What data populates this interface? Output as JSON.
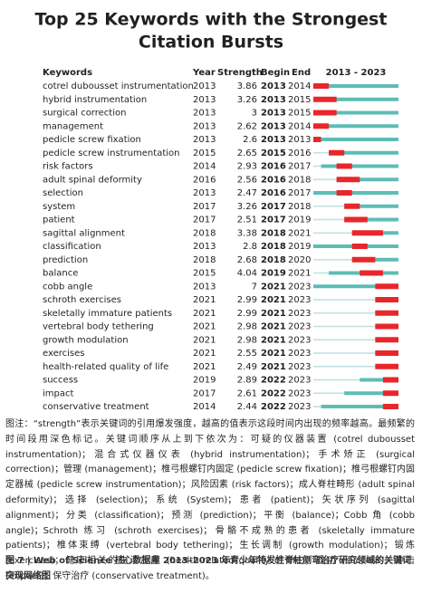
{
  "title": [
    "Top 25 Keywords with the Strongest",
    "Citation Bursts"
  ],
  "table": {
    "columns": [
      "Keywords",
      "Year",
      "Strength",
      "Begin",
      "End"
    ],
    "timeline": {
      "label": "2013 - 2023",
      "start": 2013,
      "end": 2023
    },
    "rows": [
      {
        "keyword": "cotrel dubousset instrumentation",
        "year": 2013,
        "strength": 3.86,
        "begin": 2013,
        "end": 2014
      },
      {
        "keyword": "hybrid instrumentation",
        "year": 2013,
        "strength": 3.26,
        "begin": 2013,
        "end": 2015
      },
      {
        "keyword": "surgical correction",
        "year": 2013,
        "strength": 3,
        "begin": 2013,
        "end": 2015
      },
      {
        "keyword": "management",
        "year": 2013,
        "strength": 2.62,
        "begin": 2013,
        "end": 2014
      },
      {
        "keyword": "pedicle screw fixation",
        "year": 2013,
        "strength": 2.6,
        "begin": 2013,
        "end": 2013
      },
      {
        "keyword": "pedicle screw instrumentation",
        "year": 2015,
        "strength": 2.65,
        "begin": 2015,
        "end": 2016
      },
      {
        "keyword": "risk factors",
        "year": 2014,
        "strength": 2.93,
        "begin": 2016,
        "end": 2017
      },
      {
        "keyword": "adult spinal deformity",
        "year": 2016,
        "strength": 2.56,
        "begin": 2016,
        "end": 2018
      },
      {
        "keyword": "selection",
        "year": 2013,
        "strength": 2.47,
        "begin": 2016,
        "end": 2017
      },
      {
        "keyword": "system",
        "year": 2017,
        "strength": 3.26,
        "begin": 2017,
        "end": 2018
      },
      {
        "keyword": "patient",
        "year": 2017,
        "strength": 2.51,
        "begin": 2017,
        "end": 2019
      },
      {
        "keyword": "sagittal alignment",
        "year": 2018,
        "strength": 3.38,
        "begin": 2018,
        "end": 2021
      },
      {
        "keyword": "classification",
        "year": 2013,
        "strength": 2.8,
        "begin": 2018,
        "end": 2019
      },
      {
        "keyword": "prediction",
        "year": 2018,
        "strength": 2.68,
        "begin": 2018,
        "end": 2020
      },
      {
        "keyword": "balance",
        "year": 2015,
        "strength": 4.04,
        "begin": 2019,
        "end": 2021
      },
      {
        "keyword": "cobb angle",
        "year": 2013,
        "strength": 7,
        "begin": 2021,
        "end": 2023
      },
      {
        "keyword": "schroth exercises",
        "year": 2021,
        "strength": 2.99,
        "begin": 2021,
        "end": 2023
      },
      {
        "keyword": "skeletally immature patients",
        "year": 2021,
        "strength": 2.99,
        "begin": 2021,
        "end": 2023
      },
      {
        "keyword": "vertebral body tethering",
        "year": 2021,
        "strength": 2.98,
        "begin": 2021,
        "end": 2023
      },
      {
        "keyword": "growth modulation",
        "year": 2021,
        "strength": 2.98,
        "begin": 2021,
        "end": 2023
      },
      {
        "keyword": "exercises",
        "year": 2021,
        "strength": 2.55,
        "begin": 2021,
        "end": 2023
      },
      {
        "keyword": "health-related quality of life",
        "year": 2021,
        "strength": 2.49,
        "begin": 2021,
        "end": 2023
      },
      {
        "keyword": "success",
        "year": 2019,
        "strength": 2.89,
        "begin": 2022,
        "end": 2023
      },
      {
        "keyword": "impact",
        "year": 2017,
        "strength": 2.61,
        "begin": 2022,
        "end": 2023
      },
      {
        "keyword": "conservative treatment",
        "year": 2014,
        "strength": 2.44,
        "begin": 2022,
        "end": 2023
      }
    ]
  },
  "note": "图注：“strength”表示关键词的引用爆发强度，越高的值表示这段时间内出现的频率越高。最频繁的时间段用深色标记。关键词顺序从上到下依次为：可疑的仪器装置 (cotrel dubousset instrumentation)；混合式仪器仪表 (hybrid instrumentation)；手术矫正 (surgical correction)；管理 (management)；椎弓根螺钉内固定 (pedicle screw fixation)；椎弓根螺钉内固定器械 (pedicle screw instrumentation)；风险因素 (risk factors)；成人脊柱畸形 (adult spinal deformity)；选择 (selection)；系统 (System)；患者 (patient)；矢状序列 (sagittal alignment)；分类 (classification)；预测 (prediction)；平衡 (balance)；Cobb 角 (cobb angle)；Schroth 练习 (schroth exercises)；骨骼不成熟的患者 (skeletally immature patients)；椎体束缚 (vertebral body tethering)；生长调制 (growth modulation)；锻炼 (exercises)；健康相关的生活质量 (health-related quality of life)；成功 (success)；冲击 (impact)；保守治疗 (conservative treatment)。",
  "caption": "图 7 | Web of Science 核心数据库 2013–2023 年青少年特发性脊柱侧弯治疗研究领域的关键词突现网络图"
}
